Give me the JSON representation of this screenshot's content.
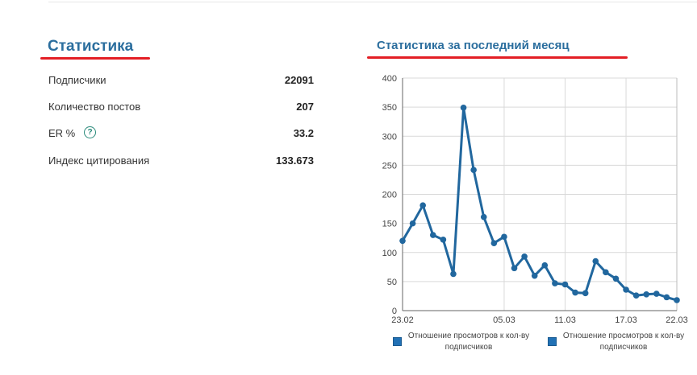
{
  "stats": {
    "title": "Статистика",
    "rows": [
      {
        "label": "Подписчики",
        "value": "22091"
      },
      {
        "label": "Количество постов",
        "value": "207"
      },
      {
        "label": "ER %",
        "value": "33.2",
        "help": "?"
      },
      {
        "label": "Индекс цитирования",
        "value": "133.673"
      }
    ]
  },
  "chart_panel": {
    "title": "Статистика за последний месяц"
  },
  "chart_data": {
    "type": "line",
    "x": [
      "23.02",
      "24.02",
      "25.02",
      "26.02",
      "27.02",
      "28.02",
      "01.03",
      "02.03",
      "03.03",
      "04.03",
      "05.03",
      "06.03",
      "07.03",
      "08.03",
      "09.03",
      "10.03",
      "11.03",
      "12.03",
      "13.03",
      "14.03",
      "15.03",
      "16.03",
      "17.03",
      "18.03",
      "19.03",
      "20.03",
      "21.03",
      "22.03"
    ],
    "x_ticks": [
      "23.02",
      "05.03",
      "11.03",
      "17.03",
      "22.03"
    ],
    "series": [
      {
        "name": "Отношение просмотров к кол-ву подписчиков",
        "values": [
          120,
          150,
          181,
          130,
          122,
          63,
          349,
          242,
          161,
          116,
          127,
          73,
          93,
          60,
          78,
          47,
          45,
          31,
          30,
          85,
          66,
          55,
          36,
          26,
          28,
          29,
          23,
          18
        ],
        "color": "#21679e"
      }
    ],
    "y_ticks": [
      0,
      50,
      100,
      150,
      200,
      250,
      300,
      350,
      400
    ],
    "ylim": [
      0,
      400
    ],
    "grid": true,
    "legend_position": "bottom",
    "legend": [
      "Отношение просмотров к кол-ву подписчиков",
      "Отношение просмотров к кол-ву подписчиков"
    ]
  },
  "colors": {
    "accent": "#2b6e9e",
    "underline": "#e31e24",
    "series": "#21679e"
  }
}
